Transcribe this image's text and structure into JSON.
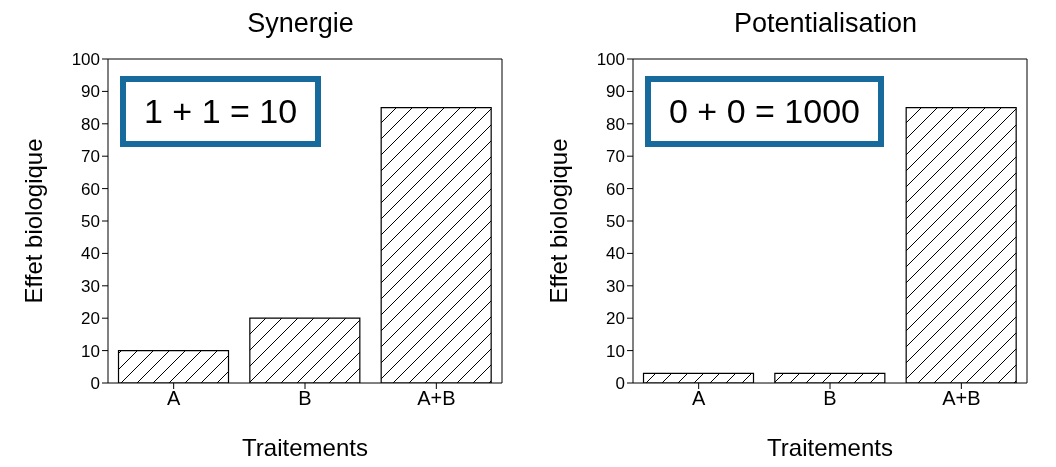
{
  "chart_data": [
    {
      "type": "bar",
      "title": "Synergie",
      "xlabel": "Traitements",
      "ylabel": "Effet biologique",
      "categories": [
        "A",
        "B",
        "A+B"
      ],
      "values": [
        10,
        20,
        85
      ],
      "color": "#000000",
      "ylim": [
        0,
        100
      ],
      "yticks": [
        0,
        10,
        20,
        30,
        40,
        50,
        60,
        70,
        80,
        90,
        100
      ],
      "grid": false,
      "legend": false,
      "annotations": [
        "1 + 1 = 10"
      ]
    },
    {
      "type": "bar",
      "title": "Potentialisation",
      "xlabel": "Traitements",
      "ylabel": "Effet biologique",
      "categories": [
        "A",
        "B",
        "A+B"
      ],
      "values": [
        3,
        3,
        85
      ],
      "color": "#000000",
      "ylim": [
        0,
        100
      ],
      "yticks": [
        0,
        10,
        20,
        30,
        40,
        50,
        60,
        70,
        80,
        90,
        100
      ],
      "grid": false,
      "legend": false,
      "annotations": [
        "0 + 0 = 1000"
      ]
    }
  ]
}
